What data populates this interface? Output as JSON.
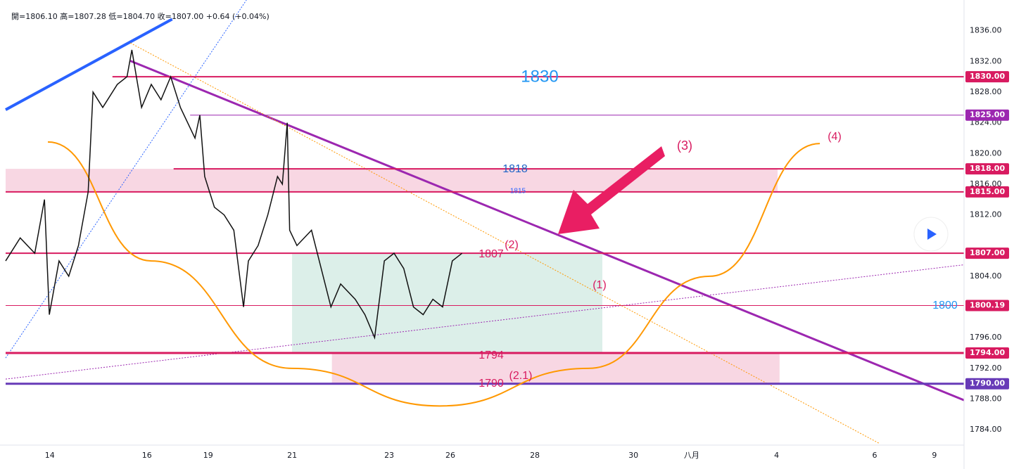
{
  "chart_data": {
    "type": "line",
    "header": "開=1806.10 高=1807.28 低=1804.70 收=1807.00 +0.64 (+0.04%)",
    "xlim": [
      0,
      19.74
    ],
    "ylim": [
      1782,
      1840
    ],
    "xticks": [
      {
        "value": 0.91,
        "label": "14"
      },
      {
        "value": 2.91,
        "label": "16"
      },
      {
        "value": 4.17,
        "label": "19"
      },
      {
        "value": 5.9,
        "label": "21"
      },
      {
        "value": 7.9,
        "label": "23"
      },
      {
        "value": 9.16,
        "label": "26"
      },
      {
        "value": 10.9,
        "label": "28"
      },
      {
        "value": 12.93,
        "label": "30"
      },
      {
        "value": 14.13,
        "label": "八月"
      },
      {
        "value": 15.88,
        "label": "4"
      },
      {
        "value": 17.9,
        "label": "6"
      },
      {
        "value": 19.13,
        "label": "9"
      }
    ],
    "yticks": [
      {
        "value": 1836,
        "label": "1836.00"
      },
      {
        "value": 1832,
        "label": "1832.00"
      },
      {
        "value": 1828,
        "label": "1828.00"
      },
      {
        "value": 1824,
        "label": "1824.00"
      },
      {
        "value": 1820,
        "label": "1820.00"
      },
      {
        "value": 1816,
        "label": "1816.00"
      },
      {
        "value": 1812,
        "label": "1812.00"
      },
      {
        "value": 1804,
        "label": "1804.00"
      },
      {
        "value": 1796,
        "label": "1796.00"
      },
      {
        "value": 1792,
        "label": "1792.00"
      },
      {
        "value": 1788,
        "label": "1788.00"
      },
      {
        "value": 1784,
        "label": "1784.00"
      }
    ],
    "series": [
      {
        "name": "price",
        "color": "#111111",
        "x": [
          0,
          0.3,
          0.6,
          0.8,
          0.9,
          1.1,
          1.3,
          1.5,
          1.7,
          1.8,
          2.0,
          2.3,
          2.5,
          2.6,
          2.8,
          3.0,
          3.2,
          3.4,
          3.6,
          3.9,
          4.0,
          4.1,
          4.3,
          4.5,
          4.7,
          4.8,
          4.9,
          5.0,
          5.2,
          5.4,
          5.6,
          5.7,
          5.8,
          5.85,
          6.0,
          6.3,
          6.5,
          6.7,
          6.9,
          7.2,
          7.4,
          7.6,
          7.8,
          8.0,
          8.2,
          8.4,
          8.6,
          8.8,
          9.0,
          9.2,
          9.4
        ],
        "values": [
          1806,
          1809,
          1807,
          1814,
          1799,
          1806,
          1804,
          1808,
          1815,
          1828,
          1826,
          1829,
          1830,
          1833.5,
          1826,
          1829,
          1827,
          1830,
          1826,
          1822,
          1825,
          1817,
          1813,
          1812,
          1810,
          1805,
          1800,
          1806,
          1808,
          1812,
          1817,
          1816,
          1824,
          1810,
          1808,
          1810,
          1805,
          1800,
          1803,
          1801,
          1799,
          1796,
          1806,
          1807,
          1805,
          1800,
          1799,
          1801,
          1800,
          1806,
          1807
        ]
      }
    ],
    "levels": [
      {
        "value": 1830,
        "label": "1830.00",
        "color": "#d81b60",
        "from": 2.2,
        "width": 2
      },
      {
        "value": 1825,
        "label": "1825.00",
        "color": "#9c27b0",
        "from": 3.8,
        "width": 1
      },
      {
        "value": 1818,
        "label": "1818.00",
        "color": "#d81b60",
        "from": 3.46,
        "width": 2
      },
      {
        "value": 1815,
        "label": "1815.00",
        "color": "#d81b60",
        "from": 0,
        "width": 2
      },
      {
        "value": 1807,
        "label": "1807.00",
        "color": "#d81b60",
        "from": 0,
        "width": 2
      },
      {
        "value": 1800.19,
        "label": "1800.19",
        "color": "#d81b60",
        "from": 0,
        "width": 1
      },
      {
        "value": 1794,
        "label": "1794.00",
        "color": "#d81b60",
        "from": 0,
        "width": 3
      },
      {
        "value": 1790,
        "label": "1790.00",
        "color": "#673ab7",
        "from": 0,
        "width": 3
      }
    ],
    "zones": [
      {
        "x": [
          0,
          15.9
        ],
        "y": [
          1815,
          1818
        ],
        "color": "#f8d7e3"
      },
      {
        "x": [
          5.9,
          12.29
        ],
        "y": [
          1794,
          1807
        ],
        "color": "#dcefe9"
      },
      {
        "x": [
          6.72,
          15.94
        ],
        "y": [
          1790,
          1794
        ],
        "color": "#f8d7e3"
      }
    ],
    "trendlines": [
      {
        "x": [
          0,
          3.43
        ],
        "y": [
          1825.7,
          1837.5
        ],
        "color": "#2962ff",
        "width": 4,
        "dash": "none"
      },
      {
        "x": [
          2.57,
          19.74
        ],
        "y": [
          1832.06,
          1787.85
        ],
        "color": "#9c27b0",
        "width": 3,
        "dash": "none"
      },
      {
        "x": [
          2.57,
          18
        ],
        "y": [
          1834.4,
          1782.2
        ],
        "color": "#ff9800",
        "width": 1,
        "dash": "2 2"
      },
      {
        "x": [
          0,
          4.96
        ],
        "y": [
          1793.35,
          1840
        ],
        "color": "#2962ff",
        "width": 1,
        "dash": "2 2"
      },
      {
        "x": [
          0,
          19.74
        ],
        "y": [
          1790.6,
          1805.5
        ],
        "color": "#9c27b0",
        "width": 1,
        "dash": "2 2"
      }
    ],
    "curve": {
      "color": "#ff9800",
      "x": [
        0.87,
        3,
        5.9,
        8.94,
        12,
        14.5,
        16.77
      ],
      "y": [
        1821.5,
        1806,
        1792,
        1787.1,
        1792,
        1804,
        1821.3
      ]
    },
    "annotations": [
      "1830",
      "1818",
      "1815",
      "1807",
      "(2)",
      "(1)",
      "(3)",
      "(4)",
      "1794",
      "1790",
      "(2.1)",
      "1800"
    ]
  }
}
